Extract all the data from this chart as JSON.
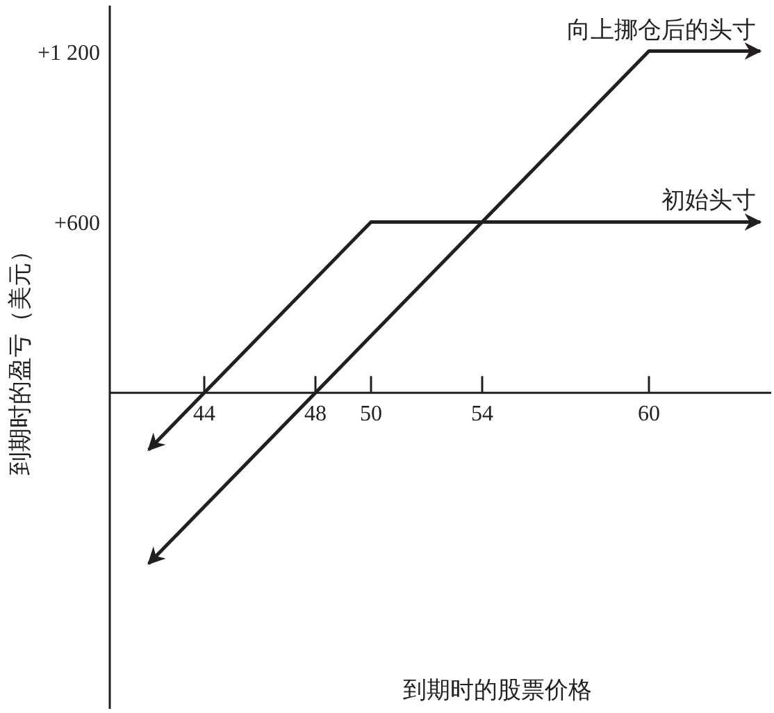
{
  "chart_data": {
    "type": "line",
    "xlabel": "到期时的股票价格",
    "ylabel": "到期时的盈亏（美元）",
    "xlim": [
      40.6,
      64.5
    ],
    "ylim": [
      -1110,
      1360
    ],
    "xticks": [
      44,
      48,
      50,
      54,
      60
    ],
    "yticks": [
      {
        "value": 1200,
        "label": "+1 200"
      },
      {
        "value": 600,
        "label": "+600"
      }
    ],
    "grid": false,
    "marker": "none",
    "line_style": "solid",
    "series": [
      {
        "name": "初始头寸",
        "color": "#231f20",
        "x": [
          42,
          50,
          64
        ],
        "values": [
          -200,
          600,
          600
        ]
      },
      {
        "name": "向上挪仓后的头寸",
        "color": "#231f20",
        "x": [
          42,
          60,
          64
        ],
        "values": [
          -600,
          1200,
          1200
        ]
      }
    ]
  }
}
